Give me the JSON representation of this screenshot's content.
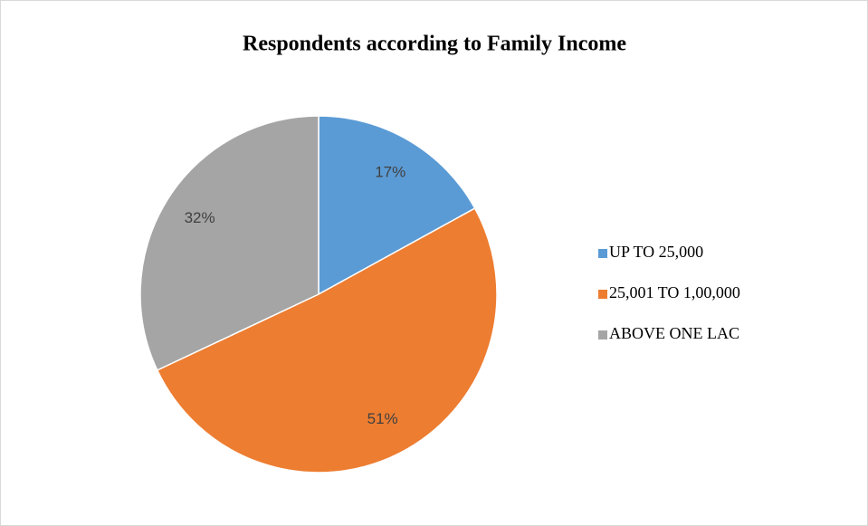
{
  "chart_data": {
    "type": "pie",
    "title": "Respondents according to Family Income",
    "categories": [
      "UP TO 25,000",
      "25,001 TO 1,00,000",
      "ABOVE ONE LAC"
    ],
    "values": [
      17,
      51,
      32
    ],
    "value_labels": [
      "17%",
      "51%",
      "32%"
    ],
    "colors": [
      "#5b9bd5",
      "#ed7d31",
      "#a5a5a5"
    ],
    "legend": "right"
  }
}
